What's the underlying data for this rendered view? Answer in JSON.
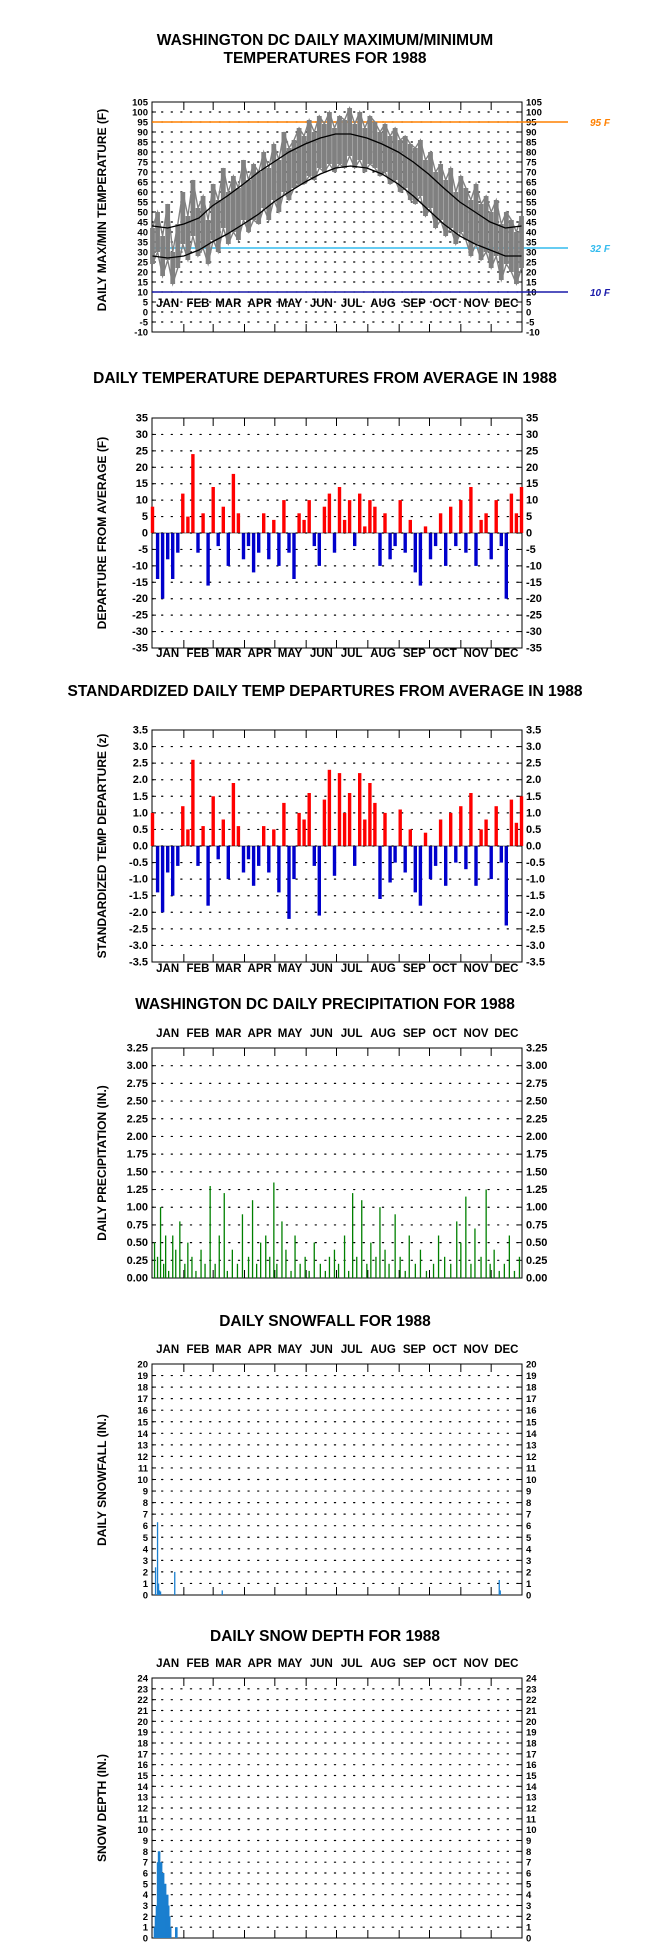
{
  "months": [
    "JAN",
    "FEB",
    "MAR",
    "APR",
    "MAY",
    "JUN",
    "JUL",
    "AUG",
    "SEP",
    "OCT",
    "NOV",
    "DEC"
  ],
  "colors": {
    "axis": "#000000",
    "grid": "#000000",
    "max_min": "#808080",
    "normal": "#000000",
    "line95": "#ff8000",
    "line32": "#33bbee",
    "line10": "#1a1aaa",
    "positive": "#ff0000",
    "negative": "#0000cc",
    "precip": "#008000",
    "snow": "#1b7fcf"
  },
  "chart_data": [
    {
      "id": "temps",
      "type": "line",
      "title": [
        "WASHINGTON DC DAILY MAXIMUM/MINIMUM",
        "TEMPERATURES FOR 1988"
      ],
      "ylabel": "DAILY MAX/MIN TEMPERATURE (F)",
      "ylim": [
        -10,
        105
      ],
      "yticks": [
        -10,
        -5,
        0,
        5,
        10,
        15,
        20,
        25,
        30,
        35,
        40,
        45,
        50,
        55,
        60,
        65,
        70,
        75,
        80,
        85,
        90,
        95,
        100,
        105
      ],
      "months_position": "bottom",
      "grid": true,
      "reference_lines": [
        {
          "value": 95,
          "label": "95 F",
          "color": "#ff8000"
        },
        {
          "value": 32,
          "label": "32 F",
          "color": "#33bbee"
        },
        {
          "value": 10,
          "label": "10 F",
          "color": "#1a1aaa"
        }
      ],
      "series": [
        {
          "role": "observed_max",
          "x": [
            1,
            6,
            11,
            16,
            21,
            26,
            31,
            36,
            41,
            46,
            51,
            56,
            61,
            66,
            71,
            76,
            81,
            86,
            91,
            96,
            101,
            106,
            111,
            116,
            121,
            126,
            131,
            136,
            141,
            146,
            151,
            156,
            161,
            166,
            171,
            176,
            181,
            186,
            191,
            196,
            201,
            206,
            211,
            216,
            221,
            226,
            231,
            236,
            241,
            246,
            251,
            256,
            261,
            266,
            271,
            276,
            281,
            286,
            291,
            296,
            301,
            306,
            311,
            316,
            321,
            326,
            331,
            336,
            341,
            346,
            351,
            356,
            361,
            366
          ],
          "y": [
            42,
            50,
            38,
            54,
            30,
            44,
            60,
            48,
            66,
            52,
            58,
            46,
            64,
            56,
            72,
            60,
            68,
            62,
            76,
            66,
            74,
            70,
            80,
            72,
            84,
            76,
            90,
            82,
            86,
            92,
            88,
            96,
            90,
            98,
            94,
            100,
            92,
            98,
            96,
            102,
            94,
            100,
            92,
            98,
            95,
            90,
            94,
            88,
            92,
            86,
            88,
            84,
            82,
            86,
            76,
            80,
            70,
            74,
            66,
            72,
            60,
            68,
            62,
            56,
            64,
            54,
            58,
            50,
            56,
            44,
            50,
            46,
            40,
            48
          ]
        },
        {
          "role": "observed_min",
          "x": [
            1,
            6,
            11,
            16,
            21,
            26,
            31,
            36,
            41,
            46,
            51,
            56,
            61,
            66,
            71,
            76,
            81,
            86,
            91,
            96,
            101,
            106,
            111,
            116,
            121,
            126,
            131,
            136,
            141,
            146,
            151,
            156,
            161,
            166,
            171,
            176,
            181,
            186,
            191,
            196,
            201,
            206,
            211,
            216,
            221,
            226,
            231,
            236,
            241,
            246,
            251,
            256,
            261,
            266,
            271,
            276,
            281,
            286,
            291,
            296,
            301,
            306,
            311,
            316,
            321,
            326,
            331,
            336,
            341,
            346,
            351,
            356,
            361,
            366
          ],
          "y": [
            24,
            30,
            18,
            26,
            14,
            22,
            34,
            26,
            38,
            28,
            32,
            24,
            36,
            30,
            42,
            34,
            40,
            36,
            46,
            40,
            46,
            44,
            52,
            46,
            56,
            50,
            60,
            56,
            62,
            64,
            64,
            68,
            66,
            72,
            70,
            74,
            70,
            74,
            72,
            78,
            72,
            76,
            70,
            74,
            72,
            68,
            70,
            64,
            66,
            60,
            62,
            56,
            54,
            58,
            48,
            52,
            42,
            46,
            38,
            42,
            34,
            40,
            36,
            28,
            34,
            26,
            30,
            22,
            28,
            16,
            24,
            20,
            14,
            22
          ]
        },
        {
          "role": "normal_max",
          "x": [
            1,
            16,
            32,
            47,
            60,
            75,
            91,
            106,
            121,
            136,
            152,
            167,
            182,
            197,
            213,
            228,
            244,
            259,
            274,
            289,
            305,
            320,
            335,
            350,
            366
          ],
          "y": [
            43,
            42,
            44,
            47,
            53,
            58,
            64,
            70,
            75,
            80,
            84,
            87,
            89,
            89,
            87,
            84,
            80,
            75,
            69,
            62,
            55,
            50,
            45,
            42,
            43
          ]
        },
        {
          "role": "normal_min",
          "x": [
            1,
            16,
            32,
            47,
            60,
            75,
            91,
            106,
            121,
            136,
            152,
            167,
            182,
            197,
            213,
            228,
            244,
            259,
            274,
            289,
            305,
            320,
            335,
            350,
            366
          ],
          "y": [
            28,
            27,
            28,
            31,
            35,
            39,
            44,
            49,
            55,
            60,
            65,
            69,
            72,
            73,
            72,
            69,
            64,
            58,
            51,
            44,
            38,
            34,
            31,
            28,
            28
          ]
        }
      ]
    },
    {
      "id": "departure",
      "type": "bar",
      "title": [
        "DAILY TEMPERATURE DEPARTURES FROM AVERAGE IN 1988"
      ],
      "ylabel": "DEPARTURE FROM AVERAGE (F)",
      "ylim": [
        -35,
        35
      ],
      "yticks": [
        -35,
        -30,
        -25,
        -20,
        -15,
        -10,
        -5,
        0,
        5,
        10,
        15,
        20,
        25,
        30,
        35
      ],
      "months_position": "bottom",
      "grid": true,
      "x": [
        1,
        6,
        11,
        16,
        21,
        26,
        31,
        36,
        41,
        46,
        51,
        56,
        61,
        66,
        71,
        76,
        81,
        86,
        91,
        96,
        101,
        106,
        111,
        116,
        121,
        126,
        131,
        136,
        141,
        146,
        151,
        156,
        161,
        166,
        171,
        176,
        181,
        186,
        191,
        196,
        201,
        206,
        211,
        216,
        221,
        226,
        231,
        236,
        241,
        246,
        251,
        256,
        261,
        266,
        271,
        276,
        281,
        286,
        291,
        296,
        301,
        306,
        311,
        316,
        321,
        326,
        331,
        336,
        341,
        346,
        351,
        356,
        361,
        366
      ],
      "values": [
        8,
        -14,
        -20,
        -8,
        -14,
        -6,
        12,
        5,
        24,
        -6,
        6,
        -16,
        14,
        -4,
        8,
        -10,
        18,
        6,
        -8,
        -4,
        -12,
        -6,
        6,
        -8,
        4,
        -10,
        10,
        -6,
        -14,
        6,
        4,
        10,
        -4,
        -10,
        8,
        12,
        -6,
        14,
        4,
        10,
        -4,
        12,
        2,
        10,
        8,
        -10,
        6,
        -8,
        -4,
        10,
        -6,
        4,
        -12,
        -16,
        2,
        -8,
        -4,
        6,
        -10,
        8,
        -4,
        10,
        -6,
        14,
        -10,
        4,
        6,
        -8,
        10,
        -4,
        -20,
        12,
        6,
        14
      ]
    },
    {
      "id": "zscore",
      "type": "bar",
      "title": [
        "STANDARDIZED DAILY TEMP DEPARTURES FROM AVERAGE IN 1988"
      ],
      "ylabel": "STANDARDIZED TEMP DEPARTURE (z)",
      "ylim": [
        -3.5,
        3.5
      ],
      "yticks": [
        -3.5,
        -3.0,
        -2.5,
        -2.0,
        -1.5,
        -1.0,
        -0.5,
        0.0,
        0.5,
        1.0,
        1.5,
        2.0,
        2.5,
        3.0,
        3.5
      ],
      "months_position": "bottom",
      "grid": true,
      "x": [
        1,
        6,
        11,
        16,
        21,
        26,
        31,
        36,
        41,
        46,
        51,
        56,
        61,
        66,
        71,
        76,
        81,
        86,
        91,
        96,
        101,
        106,
        111,
        116,
        121,
        126,
        131,
        136,
        141,
        146,
        151,
        156,
        161,
        166,
        171,
        176,
        181,
        186,
        191,
        196,
        201,
        206,
        211,
        216,
        221,
        226,
        231,
        236,
        241,
        246,
        251,
        256,
        261,
        266,
        271,
        276,
        281,
        286,
        291,
        296,
        301,
        306,
        311,
        316,
        321,
        326,
        331,
        336,
        341,
        346,
        351,
        356,
        361,
        366
      ],
      "values": [
        1.0,
        -1.4,
        -2.0,
        -0.8,
        -1.5,
        -0.6,
        1.2,
        0.5,
        2.6,
        -0.6,
        0.6,
        -1.8,
        1.5,
        -0.4,
        0.8,
        -1.0,
        1.9,
        0.6,
        -0.8,
        -0.4,
        -1.2,
        -0.6,
        0.6,
        -0.8,
        0.5,
        -1.4,
        1.3,
        -2.2,
        -1.0,
        1.0,
        0.8,
        1.6,
        -0.6,
        -2.1,
        1.4,
        2.3,
        -0.9,
        2.2,
        1.0,
        1.6,
        -0.6,
        2.2,
        0.8,
        1.9,
        1.3,
        -1.6,
        1.0,
        -1.1,
        -0.5,
        1.1,
        -0.8,
        0.5,
        -1.4,
        -1.8,
        0.4,
        -1.0,
        -0.6,
        0.8,
        -1.2,
        1.0,
        -0.5,
        1.2,
        -0.7,
        1.6,
        -1.2,
        0.5,
        0.8,
        -1.0,
        1.2,
        -0.5,
        -2.4,
        1.4,
        0.7,
        1.5
      ]
    },
    {
      "id": "precip",
      "type": "bar",
      "title": [
        "WASHINGTON DC DAILY PRECIPITATION FOR 1988"
      ],
      "ylabel": "DAILY PRECIPITATION (IN.)",
      "ylim": [
        0,
        3.25
      ],
      "yticks": [
        0.0,
        0.25,
        0.5,
        0.75,
        1.0,
        1.25,
        1.5,
        1.75,
        2.0,
        2.25,
        2.5,
        2.75,
        3.0,
        3.25
      ],
      "months_position": "top",
      "grid": true,
      "x": [
        3,
        6,
        9,
        12,
        14,
        17,
        21,
        24,
        28,
        33,
        36,
        40,
        44,
        49,
        53,
        58,
        63,
        67,
        72,
        75,
        80,
        85,
        90,
        96,
        100,
        104,
        108,
        113,
        117,
        121,
        124,
        129,
        133,
        138,
        142,
        147,
        152,
        156,
        161,
        167,
        172,
        176,
        181,
        185,
        191,
        195,
        199,
        203,
        208,
        213,
        217,
        222,
        226,
        231,
        235,
        241,
        246,
        251,
        255,
        261,
        266,
        272,
        279,
        284,
        290,
        296,
        302,
        306,
        311,
        316,
        320,
        326,
        331,
        335,
        339,
        344,
        349,
        354,
        359,
        364
      ],
      "values": [
        0.5,
        0.3,
        1.0,
        0.2,
        0.6,
        0.1,
        0.6,
        0.4,
        0.8,
        0.2,
        0.5,
        0.3,
        0.1,
        0.4,
        0.2,
        1.3,
        0.2,
        0.6,
        1.2,
        0.1,
        0.4,
        0.2,
        0.9,
        0.3,
        1.1,
        0.2,
        0.5,
        0.6,
        0.3,
        1.35,
        0.2,
        0.8,
        0.4,
        0.1,
        0.6,
        0.2,
        0.3,
        0.1,
        0.5,
        0.2,
        0.1,
        0.3,
        0.4,
        0.2,
        0.6,
        0.1,
        1.2,
        0.3,
        1.1,
        0.2,
        0.5,
        0.3,
        1.0,
        0.4,
        0.2,
        0.9,
        0.3,
        0.1,
        0.6,
        0.2,
        0.4,
        0.1,
        0.2,
        0.6,
        0.3,
        0.2,
        0.8,
        0.5,
        1.15,
        0.2,
        0.7,
        0.3,
        1.25,
        0.2,
        0.4,
        0.1,
        0.2,
        0.6,
        0.1,
        0.3
      ]
    },
    {
      "id": "snowfall",
      "type": "bar",
      "title": [
        "DAILY SNOWFALL FOR 1988"
      ],
      "ylabel": "DAILY SNOWFALL (IN.)",
      "ylim": [
        0,
        20
      ],
      "yticks": [
        0,
        1,
        2,
        3,
        4,
        5,
        6,
        7,
        8,
        9,
        10,
        11,
        12,
        13,
        14,
        15,
        16,
        17,
        18,
        19,
        20
      ],
      "months_position": "top",
      "grid": true,
      "x": [
        4,
        6,
        7,
        8,
        9,
        23,
        70,
        344,
        345
      ],
      "values": [
        2.4,
        6.3,
        1.0,
        0.4,
        0.3,
        2.0,
        0.4,
        1.3,
        0.4
      ]
    },
    {
      "id": "snowdepth",
      "type": "bar",
      "title": [
        "DAILY SNOW DEPTH FOR 1988"
      ],
      "ylabel": "SNOW DEPTH (IN.)",
      "ylim": [
        0,
        24
      ],
      "yticks": [
        0,
        1,
        2,
        3,
        4,
        5,
        6,
        7,
        8,
        9,
        10,
        11,
        12,
        13,
        14,
        15,
        16,
        17,
        18,
        19,
        20,
        21,
        22,
        23,
        24
      ],
      "months_position": "top",
      "grid": true,
      "x": [
        3,
        4,
        5,
        6,
        7,
        8,
        9,
        10,
        11,
        12,
        13,
        14,
        15,
        16,
        17,
        18,
        19,
        24,
        25
      ],
      "values": [
        1,
        2,
        3,
        7,
        8,
        8,
        7,
        7,
        6,
        6,
        5,
        5,
        4,
        4,
        3,
        2,
        1,
        1,
        1
      ]
    }
  ]
}
